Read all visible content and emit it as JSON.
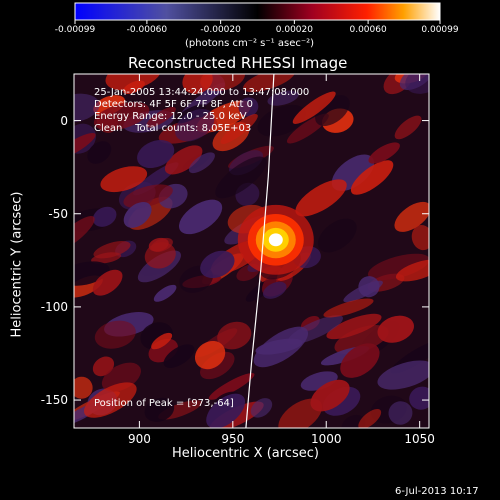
{
  "chart_data": {
    "type": "heatmap",
    "title": "Reconstructed RHESSI Image",
    "xlabel": "Heliocentric X (arcsec)",
    "ylabel": "Heliocentric Y (arcsec)",
    "xlim": [
      865,
      1055
    ],
    "ylim": [
      -165,
      25
    ],
    "xticks": [
      "900",
      "950",
      "1000",
      "1050"
    ],
    "xtick_values": [
      900,
      950,
      1000,
      1050
    ],
    "yticks": [
      "0",
      "-50",
      "-100",
      "-150"
    ],
    "ytick_values": [
      0,
      -50,
      -100,
      -150
    ],
    "peak": [
      973,
      -64
    ],
    "colorbar": {
      "range": [
        -0.00099,
        0.00099
      ],
      "ticks": [
        "-0.00099",
        "-0.00060",
        "-0.00020",
        "0.00020",
        "0.00060",
        "0.00099"
      ],
      "tick_values": [
        -0.00099,
        -0.0006,
        -0.0002,
        0.0002,
        0.0006,
        0.00099
      ],
      "unit_label": "(photons cm⁻² s⁻¹ asec⁻²)"
    },
    "annotations": {
      "time": "25-Jan-2005 13:44:24.000 to 13:47:08.000",
      "detectors": "Detectors: 4F 5F 6F 7F 8F, Att 0",
      "energy": "Energy Range: 12.0 - 25.0 keV",
      "clean": "Clean    Total counts: 8.05E+03",
      "peak_label": "Position of Peak = [973,-64]"
    },
    "limb_curve": [
      [
        972,
        25
      ],
      [
        969,
        -30
      ],
      [
        965,
        -80
      ],
      [
        960,
        -130
      ],
      [
        957,
        -165
      ]
    ],
    "date_stamp": "6-Jul-2013 10:17"
  }
}
